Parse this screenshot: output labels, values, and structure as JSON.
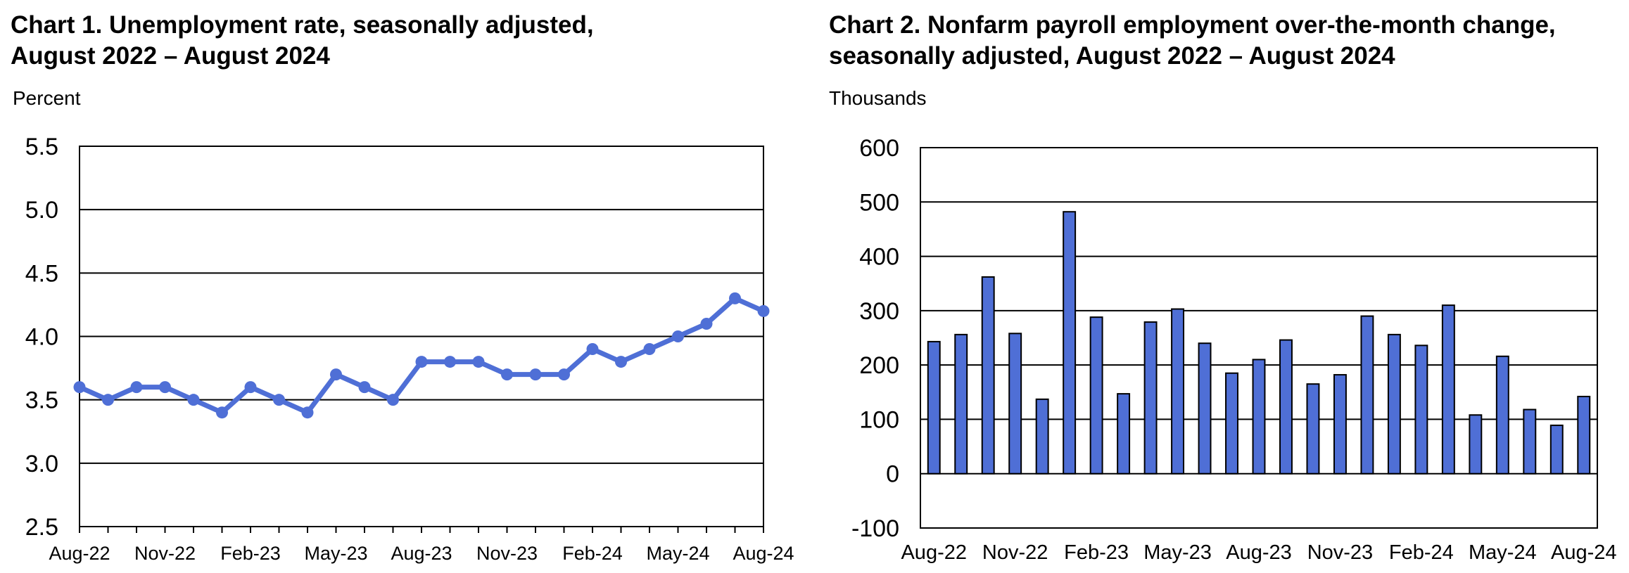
{
  "charts": [
    {
      "title_line1": "Chart 1. Unemployment rate, seasonally adjusted,",
      "title_line2": "August 2022 – August 2024",
      "unit_label": "Percent"
    },
    {
      "title_line1": "Chart 2. Nonfarm payroll employment over-the-month change,",
      "title_line2": "seasonally adjusted, August 2022 – August 2024",
      "unit_label": "Thousands"
    }
  ],
  "chart_data": [
    {
      "type": "line",
      "title": "Chart 1. Unemployment rate, seasonally adjusted, August 2022 – August 2024",
      "ylabel": "Percent",
      "xlabel": "",
      "ylim": [
        2.5,
        5.5
      ],
      "yticks": [
        "2.5",
        "3.0",
        "3.5",
        "4.0",
        "4.5",
        "5.0",
        "5.5"
      ],
      "xtick_labels": [
        "Aug-22",
        "Nov-22",
        "Feb-23",
        "May-23",
        "Aug-23",
        "Nov-23",
        "Feb-24",
        "May-24",
        "Aug-24"
      ],
      "x": [
        "Aug-22",
        "Sep-22",
        "Oct-22",
        "Nov-22",
        "Dec-22",
        "Jan-23",
        "Feb-23",
        "Mar-23",
        "Apr-23",
        "May-23",
        "Jun-23",
        "Jul-23",
        "Aug-23",
        "Sep-23",
        "Oct-23",
        "Nov-23",
        "Dec-23",
        "Jan-24",
        "Feb-24",
        "Mar-24",
        "Apr-24",
        "May-24",
        "Jun-24",
        "Jul-24",
        "Aug-24"
      ],
      "values": [
        3.6,
        3.5,
        3.6,
        3.6,
        3.5,
        3.4,
        3.6,
        3.5,
        3.4,
        3.7,
        3.6,
        3.5,
        3.8,
        3.8,
        3.8,
        3.7,
        3.7,
        3.7,
        3.9,
        3.8,
        3.9,
        4.0,
        4.1,
        4.3,
        4.2
      ],
      "color": "#4f6fd6",
      "grid": true
    },
    {
      "type": "bar",
      "title": "Chart 2. Nonfarm payroll employment over-the-month change, seasonally adjusted, August 2022 – August 2024",
      "ylabel": "Thousands",
      "xlabel": "",
      "ylim": [
        -100,
        600
      ],
      "yticks": [
        "-100",
        "0",
        "100",
        "200",
        "300",
        "400",
        "500",
        "600"
      ],
      "xtick_labels": [
        "Aug-22",
        "Nov-22",
        "Feb-23",
        "May-23",
        "Aug-23",
        "Nov-23",
        "Feb-24",
        "May-24",
        "Aug-24"
      ],
      "categories": [
        "Aug-22",
        "Sep-22",
        "Oct-22",
        "Nov-22",
        "Dec-22",
        "Jan-23",
        "Feb-23",
        "Mar-23",
        "Apr-23",
        "May-23",
        "Jun-23",
        "Jul-23",
        "Aug-23",
        "Sep-23",
        "Oct-23",
        "Nov-23",
        "Dec-23",
        "Jan-24",
        "Feb-24",
        "Mar-24",
        "Apr-24",
        "May-24",
        "Jun-24",
        "Jul-24",
        "Aug-24"
      ],
      "values": [
        243,
        256,
        362,
        258,
        137,
        482,
        288,
        147,
        279,
        303,
        240,
        185,
        210,
        246,
        165,
        182,
        290,
        256,
        236,
        310,
        108,
        216,
        118,
        89,
        142
      ],
      "color": "#4f6fd6",
      "grid": true
    }
  ]
}
